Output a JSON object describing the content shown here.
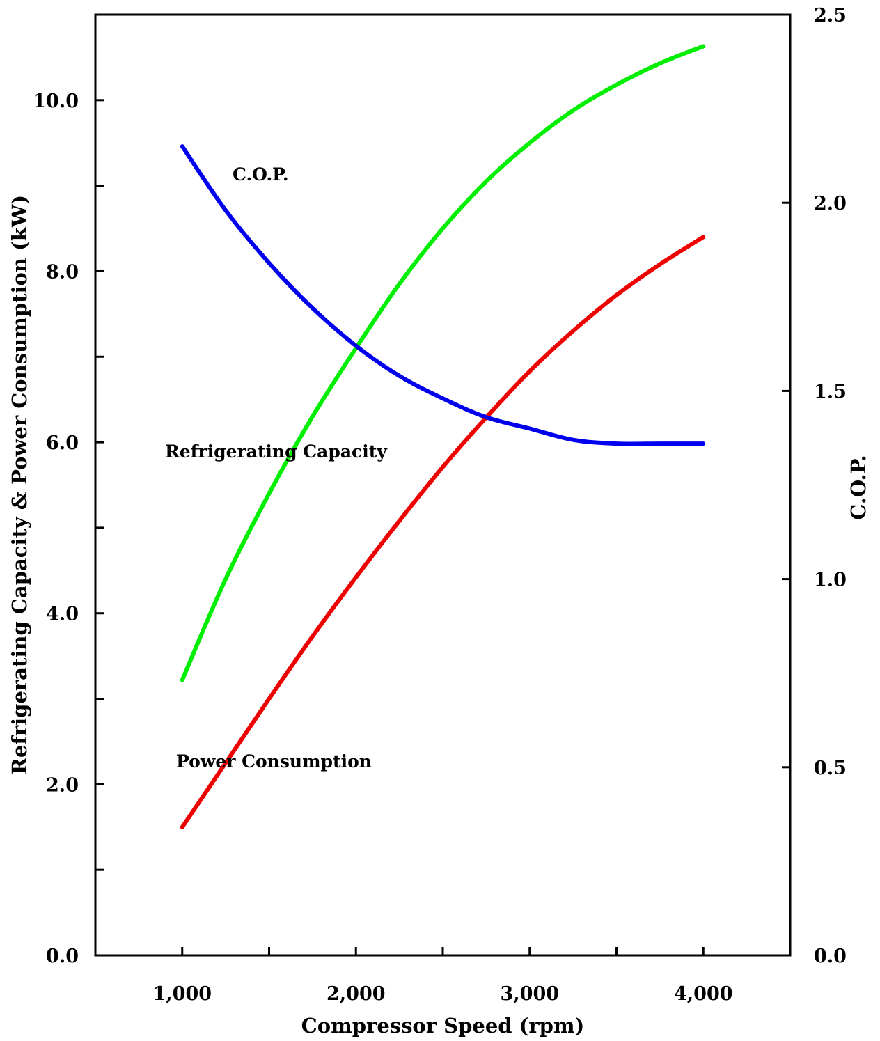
{
  "chart_data": {
    "type": "line",
    "xlabel": "Compressor Speed (rpm)",
    "ylabel_left": "Refrigerating Capacity & Power Consumption (kW)",
    "ylabel_right": "C.O.P.",
    "xlim": [
      500,
      4500
    ],
    "ylim_left": [
      0,
      11
    ],
    "ylim_right": [
      0,
      2.5
    ],
    "x_ticks": [
      1000,
      2000,
      3000,
      4000
    ],
    "x_tick_labels": [
      "1,000",
      "2,000",
      "3,000",
      "4,000"
    ],
    "x_minor_ticks": [
      1500,
      2500,
      3500
    ],
    "y_left_ticks": [
      0,
      2,
      4,
      6,
      8,
      10
    ],
    "y_left_tick_labels": [
      "0.0",
      "2.0",
      "4.0",
      "6.0",
      "8.0",
      "10.0"
    ],
    "y_left_minor_ticks": [
      1,
      3,
      5,
      7,
      9
    ],
    "y_right_ticks": [
      0,
      0.5,
      1.0,
      1.5,
      2.0,
      2.5
    ],
    "y_right_tick_labels": [
      "0.0",
      "0.5",
      "1.0",
      "1.5",
      "2.0",
      "2.5"
    ],
    "grid": false,
    "series": [
      {
        "name": "Refrigerating Capacity",
        "axis": "left",
        "color": "#00ee00",
        "x": [
          1000,
          1250,
          1500,
          1750,
          2000,
          2250,
          2500,
          2750,
          3000,
          3250,
          3500,
          3750,
          4000
        ],
        "y": [
          3.22,
          4.4,
          5.4,
          6.3,
          7.1,
          7.85,
          8.5,
          9.05,
          9.5,
          9.88,
          10.18,
          10.43,
          10.63
        ]
      },
      {
        "name": "Power Consumption",
        "axis": "left",
        "color": "#ee0000",
        "x": [
          1000,
          1250,
          1500,
          1750,
          2000,
          2250,
          2500,
          2750,
          3000,
          3250,
          3500,
          3750,
          4000
        ],
        "y": [
          1.5,
          2.25,
          3.0,
          3.73,
          4.42,
          5.08,
          5.71,
          6.29,
          6.83,
          7.3,
          7.72,
          8.08,
          8.4
        ]
      },
      {
        "name": "C.O.P.",
        "axis": "right",
        "color": "#0000ee",
        "x": [
          1000,
          1250,
          1500,
          1750,
          2000,
          2250,
          2500,
          2750,
          3000,
          3250,
          3500,
          3750,
          4000
        ],
        "y": [
          2.15,
          1.98,
          1.84,
          1.72,
          1.62,
          1.54,
          1.48,
          1.43,
          1.4,
          1.37,
          1.36,
          1.36,
          1.36
        ]
      }
    ],
    "annotations": [
      {
        "text": "C.O.P.",
        "series": "C.O.P."
      },
      {
        "text": "Refrigerating Capacity",
        "series": "Refrigerating Capacity"
      },
      {
        "text": "Power Consumption",
        "series": "Power Consumption"
      }
    ]
  }
}
